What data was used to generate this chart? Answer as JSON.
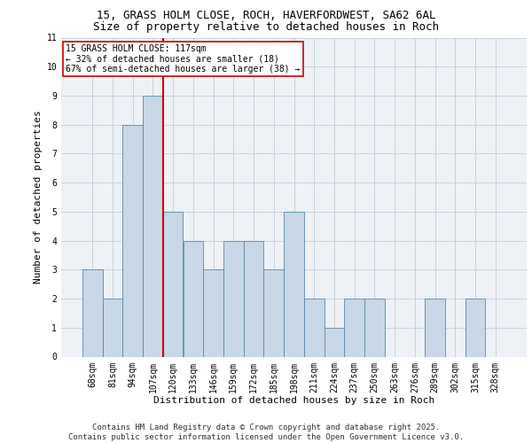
{
  "title_line1": "15, GRASS HOLM CLOSE, ROCH, HAVERFORDWEST, SA62 6AL",
  "title_line2": "Size of property relative to detached houses in Roch",
  "xlabel": "Distribution of detached houses by size in Roch",
  "ylabel": "Number of detached properties",
  "bar_color": "#c8d8e8",
  "bar_edge_color": "#5588aa",
  "categories": [
    "68sqm",
    "81sqm",
    "94sqm",
    "107sqm",
    "120sqm",
    "133sqm",
    "146sqm",
    "159sqm",
    "172sqm",
    "185sqm",
    "198sqm",
    "211sqm",
    "224sqm",
    "237sqm",
    "250sqm",
    "263sqm",
    "276sqm",
    "289sqm",
    "302sqm",
    "315sqm",
    "328sqm"
  ],
  "values": [
    3,
    2,
    8,
    9,
    5,
    4,
    3,
    4,
    4,
    3,
    5,
    2,
    1,
    2,
    2,
    0,
    0,
    2,
    0,
    2,
    0
  ],
  "ref_line_x": 3.5,
  "ref_line_label": "15 GRASS HOLM CLOSE: 117sqm",
  "annotation_left": "← 32% of detached houses are smaller (18)",
  "annotation_right": "67% of semi-detached houses are larger (38) →",
  "vline_color": "#cc0000",
  "bg_color": "#eef2f7",
  "grid_color": "#c8d0da",
  "ylim": [
    0,
    11
  ],
  "yticks": [
    0,
    1,
    2,
    3,
    4,
    5,
    6,
    7,
    8,
    9,
    10,
    11
  ],
  "footer": "Contains HM Land Registry data © Crown copyright and database right 2025.\nContains public sector information licensed under the Open Government Licence v3.0.",
  "title_fontsize": 9,
  "subtitle_fontsize": 9,
  "axis_label_fontsize": 8,
  "tick_fontsize": 7,
  "footer_fontsize": 6.5,
  "annotation_fontsize": 7
}
